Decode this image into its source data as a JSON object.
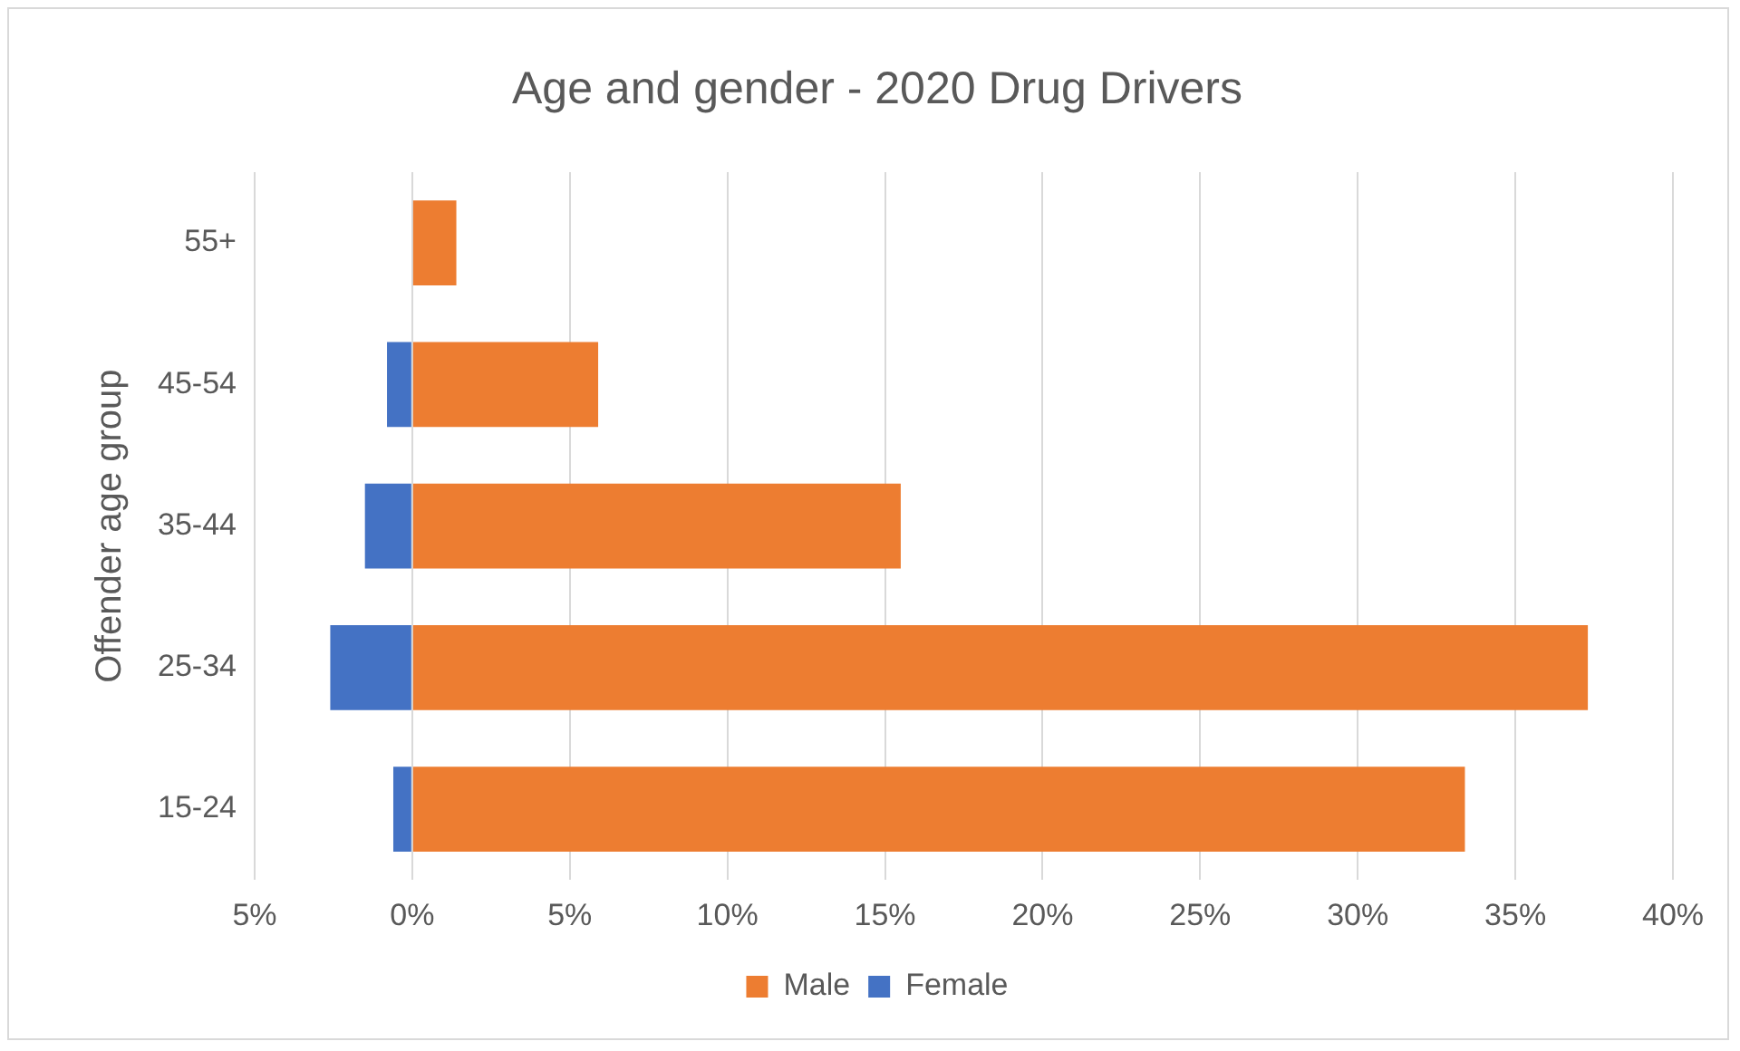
{
  "chart_data": {
    "type": "bar",
    "orientation": "horizontal",
    "stacked": true,
    "title": "Age and gender - 2020 Drug Drivers",
    "ylabel": "Offender age group",
    "categories": [
      "55+",
      "45-54",
      "35-44",
      "25-34",
      "15-24"
    ],
    "series": [
      {
        "name": "Male",
        "color": "#ed7d31",
        "values": [
          1.4,
          5.9,
          15.5,
          37.3,
          33.4
        ]
      },
      {
        "name": "Female",
        "color": "#4472c4",
        "values": [
          0,
          -0.8,
          -1.5,
          -2.6,
          -0.6
        ]
      }
    ],
    "xlim": [
      -5,
      40
    ],
    "xticks": [
      {
        "value": -5,
        "label": "5%"
      },
      {
        "value": 0,
        "label": "0%"
      },
      {
        "value": 5,
        "label": "5%"
      },
      {
        "value": 10,
        "label": "10%"
      },
      {
        "value": 15,
        "label": "15%"
      },
      {
        "value": 20,
        "label": "20%"
      },
      {
        "value": 25,
        "label": "25%"
      },
      {
        "value": 30,
        "label": "30%"
      },
      {
        "value": 35,
        "label": "35%"
      },
      {
        "value": 40,
        "label": "40%"
      }
    ],
    "grid": "x",
    "legend": "bottom"
  }
}
